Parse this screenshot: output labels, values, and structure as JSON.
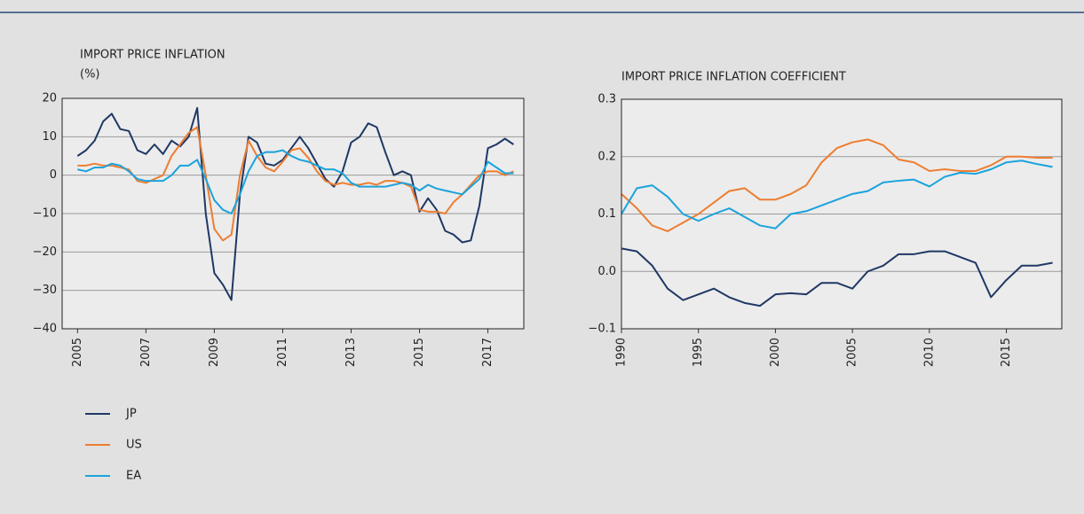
{
  "chart_data": [
    {
      "type": "line",
      "title": "IMPORT PRICE INFLATION",
      "y_label": "(%)",
      "x": [
        2005,
        2005.25,
        2005.5,
        2005.75,
        2006,
        2006.25,
        2006.5,
        2006.75,
        2007,
        2007.25,
        2007.5,
        2007.75,
        2008,
        2008.25,
        2008.5,
        2008.75,
        2009,
        2009.25,
        2009.5,
        2009.75,
        2010,
        2010.25,
        2010.5,
        2010.75,
        2011,
        2011.25,
        2011.5,
        2011.75,
        2012,
        2012.25,
        2012.5,
        2012.75,
        2013,
        2013.25,
        2013.5,
        2013.75,
        2014,
        2014.25,
        2014.5,
        2014.75,
        2015,
        2015.25,
        2015.5,
        2015.75,
        2016,
        2016.25,
        2016.5,
        2016.75,
        2017,
        2017.25,
        2017.5,
        2017.75
      ],
      "series": [
        {
          "name": "JP",
          "color": "#1f3864",
          "values": [
            5,
            6.5,
            9,
            14,
            16,
            12,
            11.5,
            6.5,
            5.5,
            8,
            5.5,
            9,
            7.5,
            10,
            17.5,
            -10,
            -25.5,
            -28.5,
            -32.5,
            -5,
            10,
            8.5,
            3,
            2.5,
            4,
            7,
            10,
            7,
            3,
            -1,
            -3,
            1,
            8.5,
            10,
            13.5,
            12.5,
            6,
            0,
            1,
            0,
            -9.5,
            -6,
            -9,
            -14.5,
            -15.5,
            -17.5,
            -17,
            -8,
            7,
            8,
            9.5,
            8
          ]
        },
        {
          "name": "US",
          "color": "#ed7d31",
          "values": [
            2.5,
            2.5,
            3,
            2.5,
            2.5,
            2,
            1.5,
            -1.5,
            -2,
            -1,
            0,
            5,
            8,
            11,
            12.5,
            0,
            -14,
            -17,
            -15.5,
            0,
            9,
            5,
            2,
            1,
            3.5,
            6.5,
            7,
            4.5,
            1,
            -1.5,
            -2.5,
            -2,
            -2.5,
            -2.5,
            -2,
            -2.5,
            -1.5,
            -1.5,
            -2,
            -3,
            -9,
            -9.5,
            -9.5,
            -10,
            -7,
            -5,
            -2.5,
            0,
            1,
            1,
            0,
            1
          ]
        },
        {
          "name": "EA",
          "color": "#1aa3dc",
          "values": [
            1.5,
            1,
            2,
            2,
            3,
            2.5,
            1,
            -1,
            -1.5,
            -1.5,
            -1.5,
            0,
            2.5,
            2.5,
            4,
            -1,
            -6.5,
            -9,
            -10,
            -5,
            1,
            5,
            6,
            6,
            6.5,
            5,
            4,
            3.5,
            2.5,
            1.5,
            1.5,
            0.5,
            -2,
            -3,
            -3,
            -3,
            -3,
            -2.5,
            -2,
            -2.5,
            -4,
            -2.5,
            -3.5,
            -4,
            -4.5,
            -5,
            -3,
            -1,
            3.5,
            2,
            0.5,
            0.5
          ]
        }
      ],
      "xlim": [
        2004.55,
        2018.05
      ],
      "xticks": [
        2005,
        2007,
        2009,
        2011,
        2013,
        2015,
        2017
      ],
      "ylim": [
        -40,
        20
      ],
      "yticks": [
        20,
        10,
        0,
        {
          "value": -10,
          "label": "−10"
        },
        {
          "value": -20,
          "label": "−20"
        },
        {
          "value": -30,
          "label": "−30"
        },
        {
          "value": -40,
          "label": "−40"
        }
      ],
      "grid": true
    },
    {
      "type": "line",
      "title": "IMPORT PRICE INFLATION COEFFICIENT",
      "x": [
        1990,
        1991,
        1992,
        1993,
        1994,
        1995,
        1996,
        1997,
        1998,
        1999,
        2000,
        2001,
        2002,
        2003,
        2004,
        2005,
        2006,
        2007,
        2008,
        2009,
        2010,
        2011,
        2012,
        2013,
        2014,
        2015,
        2016,
        2017,
        2018
      ],
      "series": [
        {
          "name": "JP",
          "color": "#1f3864",
          "values": [
            0.04,
            0.035,
            0.01,
            -0.03,
            -0.05,
            -0.04,
            -0.03,
            -0.045,
            -0.055,
            -0.06,
            -0.04,
            -0.038,
            -0.04,
            -0.02,
            -0.02,
            -0.03,
            0.0,
            0.01,
            0.03,
            0.03,
            0.035,
            0.035,
            0.025,
            0.015,
            -0.045,
            -0.015,
            0.01,
            0.01,
            0.015
          ]
        },
        {
          "name": "US",
          "color": "#ed7d31",
          "values": [
            0.135,
            0.11,
            0.08,
            0.07,
            0.085,
            0.1,
            0.12,
            0.14,
            0.145,
            0.125,
            0.125,
            0.135,
            0.15,
            0.19,
            0.215,
            0.225,
            0.23,
            0.22,
            0.195,
            0.19,
            0.175,
            0.178,
            0.175,
            0.175,
            0.185,
            0.2,
            0.2,
            0.198,
            0.198
          ]
        },
        {
          "name": "EA",
          "color": "#1aa3dc",
          "values": [
            0.1,
            0.145,
            0.15,
            0.13,
            0.1,
            0.088,
            0.1,
            0.11,
            0.095,
            0.08,
            0.075,
            0.1,
            0.105,
            0.115,
            0.125,
            0.135,
            0.14,
            0.155,
            0.158,
            0.16,
            0.148,
            0.165,
            0.172,
            0.17,
            0.178,
            0.19,
            0.193,
            0.187,
            0.182
          ]
        }
      ],
      "xlim": [
        1990,
        2018.6
      ],
      "xticks": [
        1990,
        1995,
        2000,
        2005,
        2010,
        2015
      ],
      "ylim": [
        -0.1,
        0.3
      ],
      "yticks": [
        0.3,
        0.2,
        0.1,
        {
          "value": 0,
          "label": "0.0"
        },
        {
          "value": -0.1,
          "label": "−0.1"
        }
      ],
      "grid": true
    }
  ]
}
